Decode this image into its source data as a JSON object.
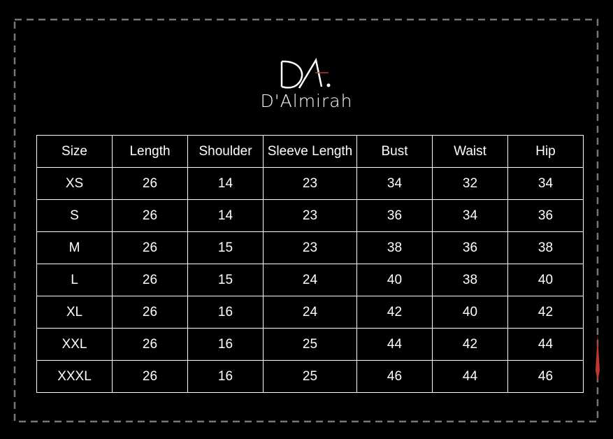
{
  "brand": {
    "name": "D'Almirah"
  },
  "table": {
    "header": [
      "Size",
      "Length",
      "Shoulder",
      "Sleeve Length",
      "Bust",
      "Waist",
      "Hip"
    ],
    "rows": [
      [
        "XS",
        26,
        14,
        23,
        34,
        32,
        34
      ],
      [
        "S",
        26,
        14,
        23,
        36,
        34,
        36
      ],
      [
        "M",
        26,
        15,
        23,
        38,
        36,
        38
      ],
      [
        "L",
        26,
        15,
        24,
        40,
        38,
        40
      ],
      [
        "XL",
        26,
        16,
        24,
        42,
        40,
        42
      ],
      [
        "XXL",
        26,
        16,
        25,
        44,
        42,
        44
      ],
      [
        "XXXL",
        26,
        16,
        25,
        46,
        44,
        46
      ]
    ]
  }
}
